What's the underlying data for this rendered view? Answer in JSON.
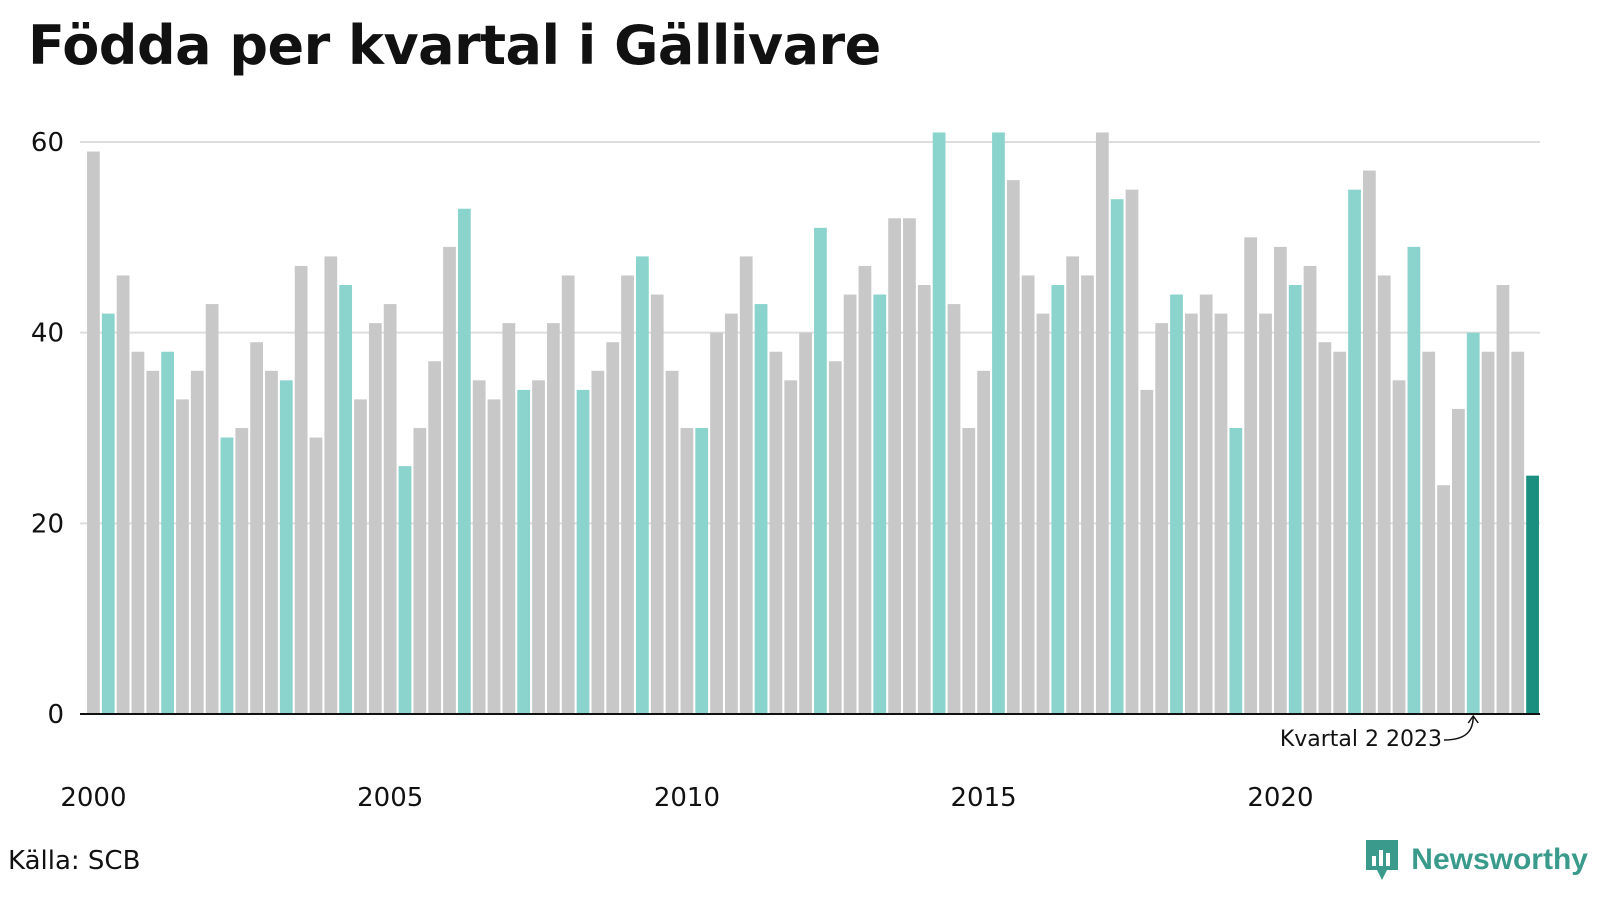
{
  "title": "Födda per kvartal i Gällivare",
  "source": "Källa: SCB",
  "brand": "Newsworthy",
  "colors": {
    "default_bar": "#c8c8c8",
    "highlight_q2": "#8bd3cd",
    "latest": "#1a8f80",
    "grid": "#dddddd",
    "axis": "#111111",
    "brand": "#3a9b8c"
  },
  "chart_data": {
    "type": "bar",
    "title": "Födda per kvartal i Gällivare",
    "xlabel": "",
    "ylabel": "",
    "ylim": [
      0,
      60
    ],
    "y_ticks": [
      0,
      20,
      40,
      60
    ],
    "x_ticks": [
      "2000",
      "2005",
      "2010",
      "2015",
      "2020"
    ],
    "grid": true,
    "highlight": "quarter 2 of each year",
    "annotation": "Kvartal 2 2023",
    "start_year": 2000,
    "values": [
      59,
      42,
      46,
      38,
      36,
      38,
      33,
      36,
      43,
      29,
      30,
      39,
      36,
      35,
      47,
      29,
      48,
      45,
      33,
      41,
      43,
      26,
      30,
      37,
      49,
      53,
      35,
      33,
      41,
      34,
      35,
      41,
      46,
      34,
      36,
      39,
      46,
      48,
      44,
      36,
      30,
      30,
      40,
      42,
      48,
      43,
      38,
      35,
      40,
      51,
      37,
      44,
      47,
      44,
      52,
      52,
      45,
      61,
      43,
      30,
      36,
      61,
      56,
      46,
      42,
      45,
      48,
      46,
      61,
      54,
      55,
      34,
      41,
      44,
      42,
      44,
      42,
      30,
      50,
      42,
      49,
      45,
      47,
      39,
      38,
      55,
      57,
      46,
      35,
      49,
      38,
      24,
      32,
      40,
      38,
      45,
      38,
      25
    ]
  }
}
